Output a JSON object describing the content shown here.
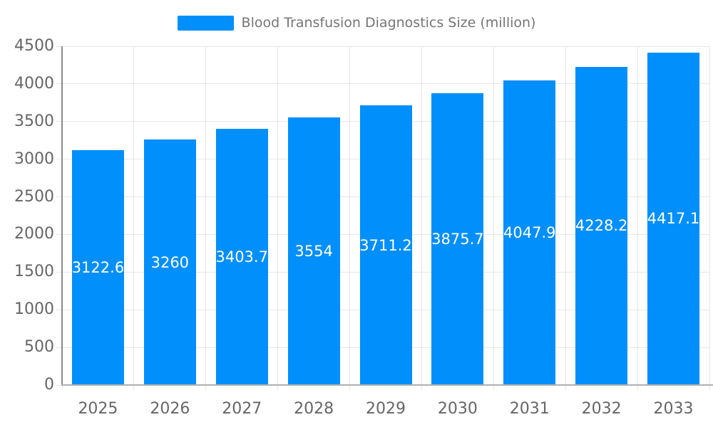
{
  "chart_data": {
    "type": "bar",
    "title": "Blood Transfusion Diagnostics Size (million)",
    "legend": {
      "label": "Blood Transfusion Diagnostics Size (million)",
      "position": "top"
    },
    "categories": [
      "2025",
      "2026",
      "2027",
      "2028",
      "2029",
      "2030",
      "2031",
      "2032",
      "2033"
    ],
    "series": [
      {
        "name": "Blood Transfusion Diagnostics Size (million)",
        "values": [
          3122.6,
          3260,
          3403.7,
          3554,
          3711.2,
          3875.7,
          4047.9,
          4228.2,
          4417.1
        ],
        "value_labels": [
          "3122.6",
          "3260",
          "3403.7",
          "3554",
          "3711.2",
          "3875.7",
          "4047.9",
          "4228.2",
          "4417.1"
        ]
      }
    ],
    "xlabel": "",
    "ylabel": "",
    "ylim": [
      0,
      4500
    ],
    "yticks": [
      0,
      500,
      1000,
      1500,
      2000,
      2500,
      3000,
      3500,
      4000,
      4500
    ],
    "ytick_labels": [
      "0",
      "500",
      "1000",
      "1500",
      "2000",
      "2500",
      "3000",
      "3500",
      "4000",
      "4500"
    ],
    "grid": true,
    "value_label_position": "center",
    "colors": {
      "bar": "#008FFB",
      "grid": "#e7e7e7",
      "y_axis_line": "#8a8a8a",
      "x_axis_line": "#b0b0b0",
      "axis_label": "#666666",
      "legend_text": "#757575",
      "value_label": "#ffffff",
      "background": "#ffffff"
    }
  }
}
